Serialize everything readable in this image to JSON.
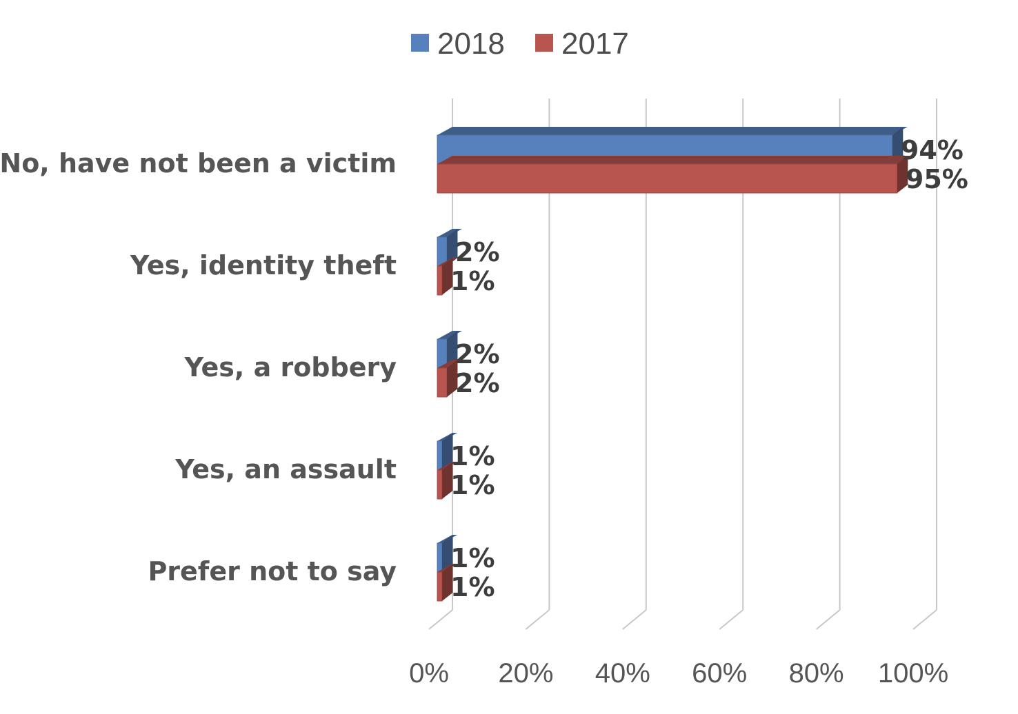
{
  "chart_data": {
    "type": "bar",
    "orientation": "horizontal",
    "style": "3d",
    "categories": [
      "No, have not been a victim",
      "Yes, identity theft",
      "Yes, a robbery",
      "Yes, an assault",
      "Prefer not to say"
    ],
    "series": [
      {
        "name": "2018",
        "color": "#5681bc",
        "values": [
          94,
          2,
          2,
          1,
          1
        ],
        "labels": [
          "94%",
          "2%",
          "2%",
          "1%",
          "1%"
        ]
      },
      {
        "name": "2017",
        "color": "#b9554f",
        "values": [
          95,
          1,
          2,
          1,
          1
        ],
        "labels": [
          "95%",
          "1%",
          "2%",
          "1%",
          "1%"
        ]
      }
    ],
    "xlim": [
      0,
      100
    ],
    "xticks": [
      "0%",
      "20%",
      "40%",
      "60%",
      "80%",
      "100%"
    ],
    "legend_position": "top-center",
    "grid": true
  }
}
